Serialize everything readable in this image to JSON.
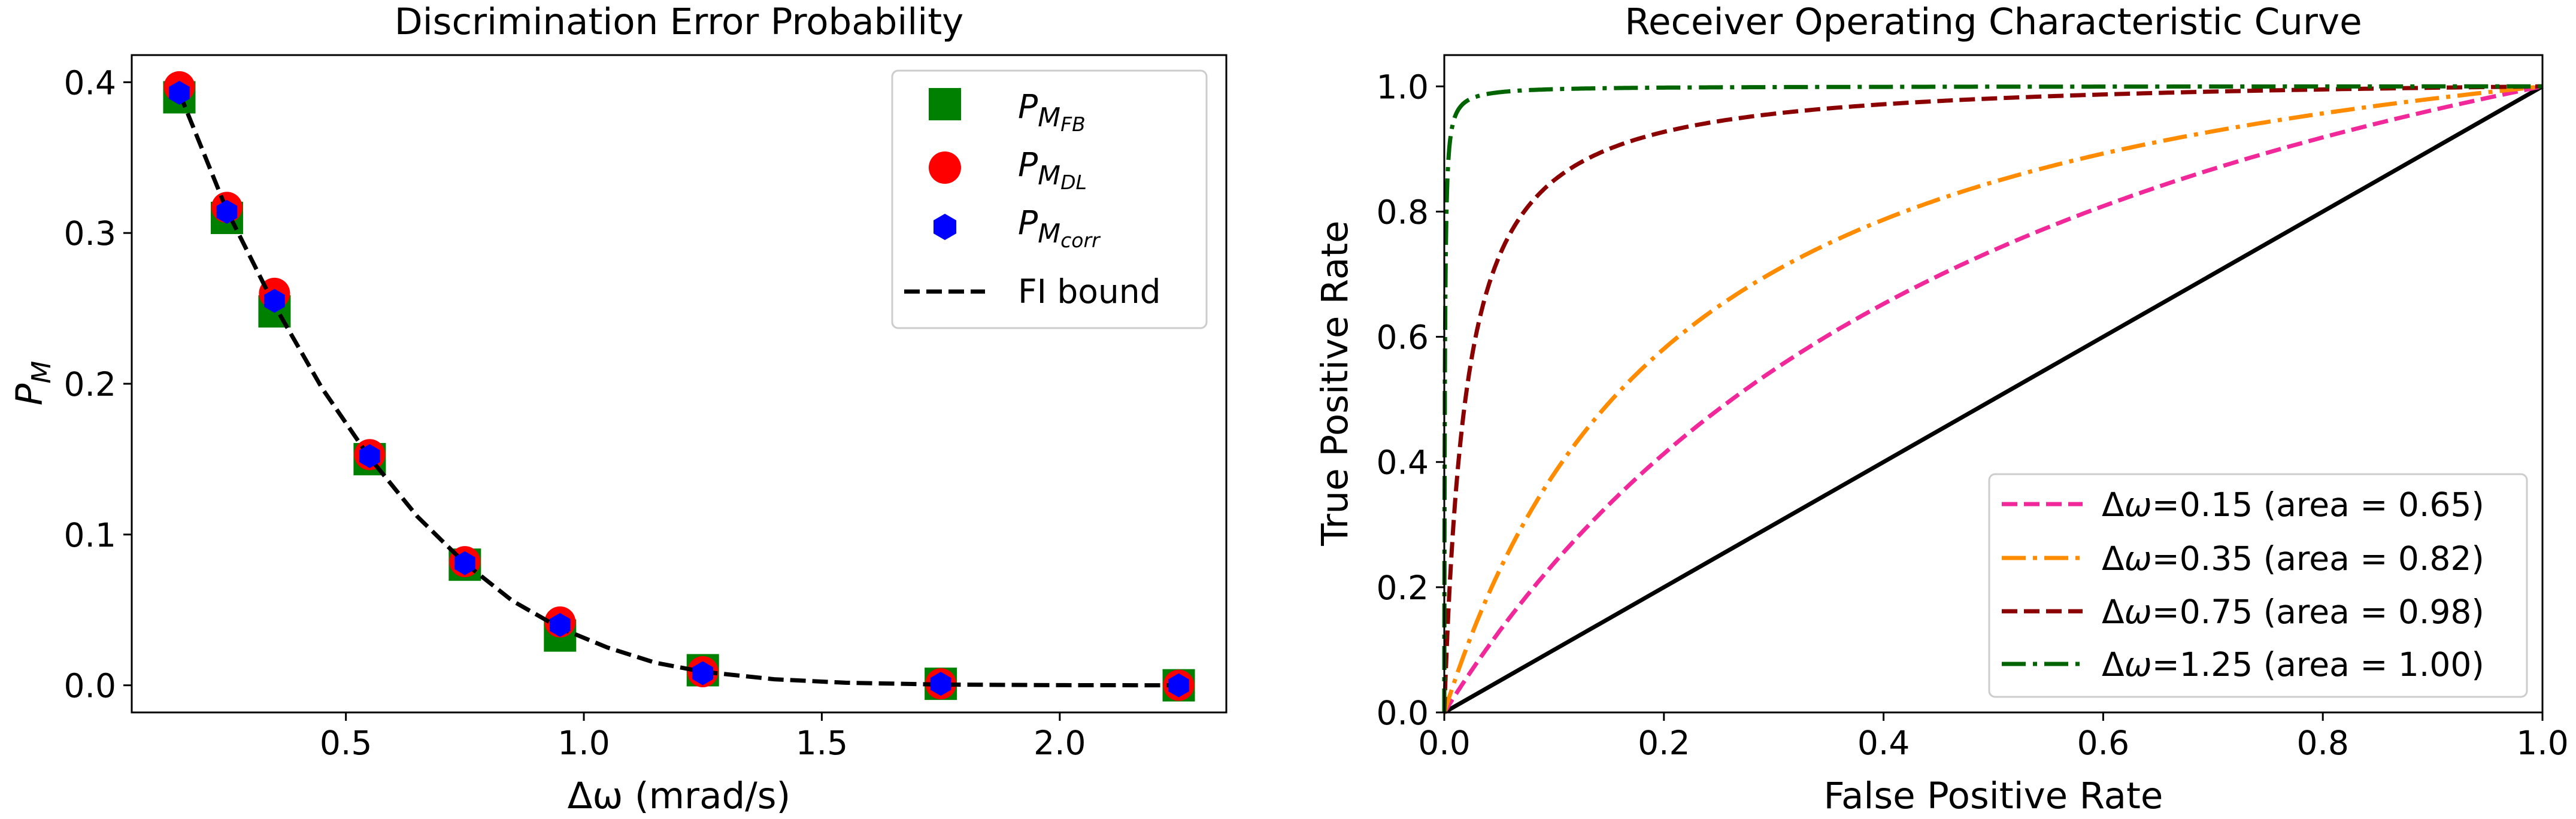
{
  "chart_data": [
    {
      "type": "scatter",
      "title": "Discrimination Error Probability",
      "xlabel": "Δω (mrad/s)",
      "ylabel": {
        "base": "P",
        "sub": "M"
      },
      "xlim": [
        0.05,
        2.35
      ],
      "ylim": [
        -0.018,
        0.418
      ],
      "xticks": [
        0.5,
        1.0,
        1.5,
        2.0
      ],
      "xtick_labels": [
        "0.5",
        "1.0",
        "1.5",
        "2.0"
      ],
      "yticks": [
        0.0,
        0.1,
        0.2,
        0.3,
        0.4
      ],
      "ytick_labels": [
        "0.0",
        "0.1",
        "0.2",
        "0.3",
        "0.4"
      ],
      "legend_position": "top-right",
      "series": [
        {
          "name": "P_M_FB",
          "label": {
            "base": "P",
            "sub": "M",
            "subsub": "FB"
          },
          "marker": "square",
          "color": "#008000",
          "x": [
            0.15,
            0.25,
            0.35,
            0.55,
            0.75,
            0.95,
            1.25,
            1.75,
            2.25
          ],
          "y": [
            0.39,
            0.31,
            0.248,
            0.15,
            0.08,
            0.033,
            0.01,
            0.001,
            0.0
          ]
        },
        {
          "name": "P_M_DL",
          "label": {
            "base": "P",
            "sub": "M",
            "subsub": "DL"
          },
          "marker": "circle",
          "color": "#ff0000",
          "x": [
            0.15,
            0.25,
            0.35,
            0.55,
            0.75,
            0.95,
            1.25,
            1.75,
            2.25
          ],
          "y": [
            0.397,
            0.317,
            0.26,
            0.153,
            0.082,
            0.042,
            0.009,
            0.001,
            0.0
          ]
        },
        {
          "name": "P_M_corr",
          "label": {
            "base": "P",
            "sub": "M",
            "subsub": "corr"
          },
          "marker": "hexagon",
          "color": "#0000ff",
          "x": [
            0.15,
            0.25,
            0.35,
            0.55,
            0.75,
            0.95,
            1.25,
            1.75,
            2.25
          ],
          "y": [
            0.393,
            0.314,
            0.255,
            0.152,
            0.081,
            0.04,
            0.008,
            0.001,
            0.0
          ]
        },
        {
          "name": "FI bound",
          "label": {
            "base": "FI bound"
          },
          "line_style": "dashed",
          "color": "#000000",
          "x": [
            0.15,
            0.25,
            0.35,
            0.45,
            0.55,
            0.65,
            0.75,
            0.85,
            0.95,
            1.05,
            1.15,
            1.25,
            1.4,
            1.55,
            1.75,
            2.0,
            2.25
          ],
          "y": [
            0.393,
            0.315,
            0.252,
            0.197,
            0.151,
            0.112,
            0.081,
            0.056,
            0.038,
            0.025,
            0.015,
            0.009,
            0.004,
            0.0017,
            0.0005,
            0.0001,
            0.0
          ]
        }
      ]
    },
    {
      "type": "line",
      "title": "Receiver Operating Characteristic Curve",
      "xlabel": "False Positive Rate",
      "ylabel": "True Positive Rate",
      "xlim": [
        0.0,
        1.0
      ],
      "ylim": [
        0.0,
        1.05
      ],
      "xticks": [
        0.0,
        0.2,
        0.4,
        0.6,
        0.8,
        1.0
      ],
      "xtick_labels": [
        "0.0",
        "0.2",
        "0.4",
        "0.6",
        "0.8",
        "1.0"
      ],
      "yticks": [
        0.0,
        0.2,
        0.4,
        0.6,
        0.8,
        1.0
      ],
      "ytick_labels": [
        "0.0",
        "0.2",
        "0.4",
        "0.6",
        "0.8",
        "1.0"
      ],
      "legend_position": "lower-right",
      "diagonal": {
        "x": [
          0,
          1
        ],
        "y": [
          0,
          1
        ],
        "color": "#000000"
      },
      "series": [
        {
          "name": "Δω=0.15 (area = 0.65)",
          "delta": "0.15",
          "area": "0.65",
          "color": "#f0289a",
          "dash": "dashed",
          "k": 0.55
        },
        {
          "name": "Δω=0.35 (area = 0.82)",
          "delta": "0.35",
          "area": "0.82",
          "color": "#ff8c00",
          "dash": "dashdot",
          "k": 0.22
        },
        {
          "name": "Δω=0.75 (area = 0.98)",
          "delta": "0.75",
          "area": "0.98",
          "color": "#8b0000",
          "dash": "dashed",
          "k": 0.02
        },
        {
          "name": "Δω=1.25 (area = 1.00)",
          "delta": "1.25",
          "area": "1.00",
          "color": "#006400",
          "dash": "dashdot",
          "k": 0.0005
        }
      ]
    }
  ]
}
